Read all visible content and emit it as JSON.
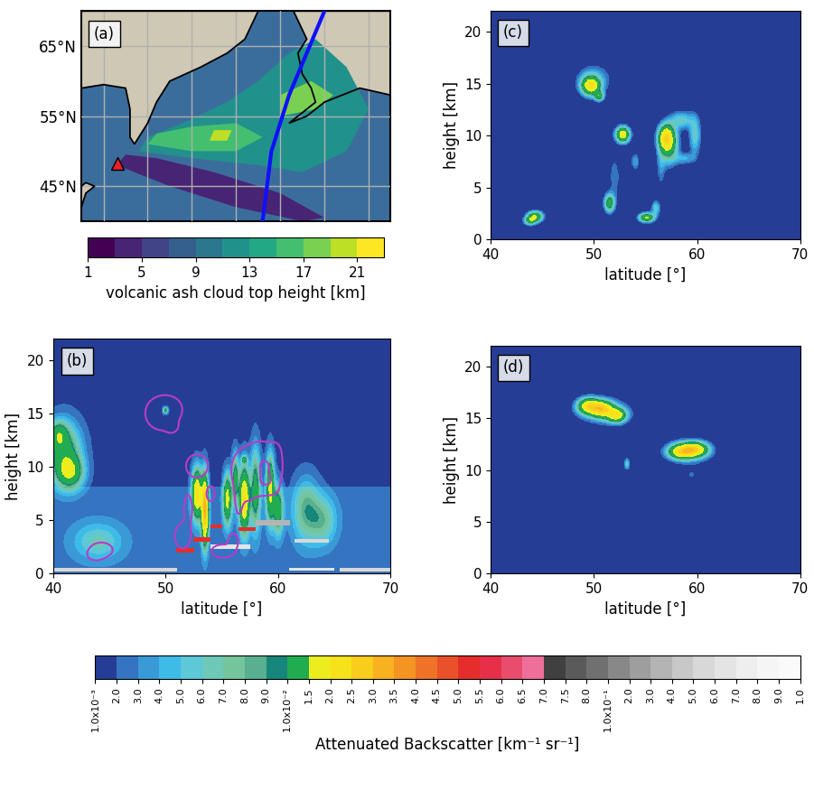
{
  "backscatter_colorbar": {
    "label": "Attenuated Backscatter [km⁻¹ sr⁻¹]",
    "ticks": [
      {
        "value": 0.001,
        "label": "1.0x10⁻³"
      },
      {
        "value": 0.002,
        "label": "2.0"
      },
      {
        "value": 0.003,
        "label": "3.0"
      },
      {
        "value": 0.004,
        "label": "4.0"
      },
      {
        "value": 0.005,
        "label": "5.0"
      },
      {
        "value": 0.006,
        "label": "6.0"
      },
      {
        "value": 0.007,
        "label": "7.0"
      },
      {
        "value": 0.008,
        "label": "8.0"
      },
      {
        "value": 0.009,
        "label": "9.0"
      },
      {
        "value": 0.01,
        "label": "1.0x10⁻²"
      },
      {
        "value": 0.015,
        "label": "1.5"
      },
      {
        "value": 0.02,
        "label": "2.0"
      },
      {
        "value": 0.025,
        "label": "2.5"
      },
      {
        "value": 0.03,
        "label": "3.0"
      },
      {
        "value": 0.035,
        "label": "3.5"
      },
      {
        "value": 0.04,
        "label": "4.0"
      },
      {
        "value": 0.045,
        "label": "4.5"
      },
      {
        "value": 0.05,
        "label": "5.0"
      },
      {
        "value": 0.055,
        "label": "5.5"
      },
      {
        "value": 0.06,
        "label": "6.0"
      },
      {
        "value": 0.065,
        "label": "6.5"
      },
      {
        "value": 0.07,
        "label": "7.0"
      },
      {
        "value": 0.075,
        "label": "7.5"
      },
      {
        "value": 0.08,
        "label": "8.0"
      },
      {
        "value": 0.1,
        "label": "1.0x10⁻¹"
      },
      {
        "value": 0.2,
        "label": "2.0"
      },
      {
        "value": 0.3,
        "label": "3.0"
      },
      {
        "value": 0.4,
        "label": "4.0"
      },
      {
        "value": 0.5,
        "label": "5.0"
      },
      {
        "value": 0.6,
        "label": "6.0"
      },
      {
        "value": 0.7,
        "label": "7.0"
      },
      {
        "value": 0.8,
        "label": "8.0"
      },
      {
        "value": 0.9,
        "label": "9.0"
      },
      {
        "value": 1.0,
        "label": "1.0"
      }
    ],
    "colors": [
      "#263d96",
      "#3474c0",
      "#3a9ad8",
      "#3fbbe8",
      "#5cc8d8",
      "#6ec8b8",
      "#74c49c",
      "#58b090",
      "#16877a",
      "#22ac52",
      "#eded1e",
      "#f5e21b",
      "#f8cd1c",
      "#f8b21f",
      "#f39423",
      "#ee7326",
      "#e9512a",
      "#e52e2c",
      "#e6304a",
      "#e84d6e",
      "#ee6f9a",
      "#404040",
      "#5a5a5a",
      "#707070",
      "#888888",
      "#9e9e9e",
      "#b4b4b4",
      "#c8c8c8",
      "#d8d8d8",
      "#e4e4e4",
      "#eeeeee",
      "#f5f5f5",
      "#fafafa"
    ]
  },
  "chart_data": [
    {
      "type": "map",
      "label": "(a)",
      "xlim": [
        145,
        215
      ],
      "ylim": [
        40,
        70
      ],
      "xticks": [
        150,
        160,
        170,
        180,
        190,
        200,
        210
      ],
      "yticks": [
        {
          "value": 45,
          "label": "45°N"
        },
        {
          "value": 55,
          "label": "55°N"
        },
        {
          "value": 65,
          "label": "65°N"
        }
      ],
      "tick_labels": "y",
      "grid": true,
      "land": [
        {
          "lon": [
            145,
            185,
            182,
            178,
            172,
            165,
            162,
            160,
            157,
            156,
            156,
            155,
            150,
            145
          ],
          "lat": [
            70,
            70,
            66,
            64,
            62,
            60,
            57,
            54,
            51,
            52,
            56,
            59,
            59.5,
            59
          ]
        },
        {
          "lon": [
            193,
            215,
            215,
            208,
            200,
            196,
            192,
            198,
            197,
            195,
            194,
            196
          ],
          "lat": [
            70,
            70,
            58,
            59,
            57,
            55,
            54,
            57,
            59,
            61,
            64,
            66
          ]
        },
        {
          "lon": [
            145,
            146,
            148,
            146,
            145
          ],
          "lat": [
            42,
            44,
            45,
            45.5,
            45
          ]
        }
      ],
      "ash_cloud": [
        {
          "top_height": 3,
          "lon": [
            153,
            165,
            180,
            195,
            200,
            190,
            175,
            162,
            155
          ],
          "lat": [
            48,
            45,
            42,
            40,
            40.5,
            44,
            47,
            49,
            49.5
          ]
        },
        {
          "top_height": 11,
          "lon": [
            158,
            170,
            185,
            195,
            205,
            210,
            205,
            198,
            192,
            185,
            178,
            168,
            160
          ],
          "lat": [
            50,
            49,
            48,
            47,
            50,
            56,
            62,
            66,
            64,
            60,
            57,
            54,
            52
          ]
        },
        {
          "top_height": 15,
          "lon": [
            160,
            170,
            180,
            186,
            180,
            170,
            162
          ],
          "lat": [
            51,
            50,
            50,
            52,
            54,
            53.5,
            52.5
          ]
        },
        {
          "top_height": 17,
          "lon": [
            190,
            198,
            202,
            197,
            190
          ],
          "lat": [
            55,
            56,
            58,
            60,
            58
          ]
        },
        {
          "top_height": 19,
          "lon": [
            174,
            178,
            179,
            175
          ],
          "lat": [
            51.5,
            51.5,
            53,
            53
          ]
        }
      ],
      "volcano": {
        "lon": 153.2,
        "lat": 48.3,
        "color": "#e8202a",
        "marker": "triangle"
      },
      "track": {
        "lon": [
          186,
          188,
          192,
          196,
          200
        ],
        "lat": [
          40,
          50,
          58,
          64,
          70
        ],
        "color": "#1010ff"
      },
      "colorbar": {
        "label": "volcanic ash cloud top height [km]",
        "range": [
          1,
          23
        ],
        "bounds": [
          1,
          3,
          5,
          7,
          9,
          11,
          13,
          15,
          17,
          19,
          21,
          23
        ],
        "ticks": [
          1,
          5,
          9,
          13,
          17,
          21
        ]
      }
    },
    {
      "type": "lidar_curtain",
      "label": "(b)",
      "xlabel": "latitude [°]",
      "ylabel": "height [km]",
      "xlim": [
        40,
        70
      ],
      "ylim": [
        0,
        22
      ],
      "xticks": [
        40,
        50,
        60,
        70
      ],
      "yticks": [
        0,
        5,
        10,
        15,
        20
      ],
      "background": [
        {
          "height": [
            0,
            8.2
          ],
          "value": 0.0025
        },
        {
          "height": [
            8.2,
            22
          ],
          "value": 0.0015
        }
      ],
      "features": [
        {
          "lat": 41,
          "height": 11.5,
          "lat_width": 1.0,
          "height_width": 1.8,
          "peak": 0.01
        },
        {
          "lat": 41.5,
          "height": 9.5,
          "lat_width": 0.8,
          "height_width": 1.0,
          "peak": 0.012
        },
        {
          "lat": 40.5,
          "height": 13,
          "lat_width": 0.5,
          "height_width": 0.8,
          "peak": 0.008
        },
        {
          "lat": 52.8,
          "height": 7.5,
          "lat_width": 0.3,
          "height_width": 1.5,
          "peak": 0.02
        },
        {
          "lat": 53.5,
          "height": 6,
          "lat_width": 0.2,
          "height_width": 2,
          "peak": 0.03
        },
        {
          "lat": 55.5,
          "height": 7,
          "lat_width": 0.25,
          "height_width": 1.5,
          "peak": 0.015
        },
        {
          "lat": 56.2,
          "height": 9,
          "lat_width": 0.2,
          "height_width": 1.5,
          "peak": 0.01
        },
        {
          "lat": 57,
          "height": 7,
          "lat_width": 0.3,
          "height_width": 2,
          "peak": 0.02
        },
        {
          "lat": 58,
          "height": 8,
          "lat_width": 0.3,
          "height_width": 2.5,
          "peak": 0.01
        },
        {
          "lat": 59.3,
          "height": 8,
          "lat_width": 0.25,
          "height_width": 2,
          "peak": 0.015
        },
        {
          "lat": 60,
          "height": 6,
          "lat_width": 0.3,
          "height_width": 1.5,
          "peak": 0.01
        },
        {
          "lat": 62.5,
          "height": 6,
          "lat_width": 0.8,
          "height_width": 2,
          "peak": 0.006
        },
        {
          "lat": 64,
          "height": 5,
          "lat_width": 0.8,
          "height_width": 1.5,
          "peak": 0.005
        },
        {
          "lat": 50,
          "height": 15.3,
          "lat_width": 0.15,
          "height_width": 0.2,
          "peak": 0.01
        },
        {
          "lat": 57,
          "height": 10.7,
          "lat_width": 0.15,
          "height_width": 0.2,
          "peak": 0.01
        },
        {
          "lat": 44,
          "height": 3,
          "lat_width": 1.5,
          "height_width": 1.2,
          "peak": 0.004
        }
      ],
      "layers": [
        {
          "lat": [
            40,
            51
          ],
          "height": [
            0.2,
            0.5
          ],
          "value": 0.5
        },
        {
          "lat": [
            51,
            52.5
          ],
          "height": [
            2.0,
            2.4
          ],
          "value": 0.05
        },
        {
          "lat": [
            52.5,
            54
          ],
          "height": [
            3.0,
            3.4
          ],
          "value": 0.05
        },
        {
          "lat": [
            54,
            55
          ],
          "height": [
            4.3,
            4.6
          ],
          "value": 0.05
        },
        {
          "lat": [
            54,
            57.5
          ],
          "height": [
            2.3,
            2.7
          ],
          "value": 0.6
        },
        {
          "lat": [
            56.5,
            58
          ],
          "height": [
            4.0,
            4.3
          ],
          "value": 0.05
        },
        {
          "lat": [
            58,
            61
          ],
          "height": [
            4.5,
            5.0
          ],
          "value": 0.3
        },
        {
          "lat": [
            61.5,
            64.5
          ],
          "height": [
            2.9,
            3.3
          ],
          "value": 0.5
        },
        {
          "lat": [
            61,
            65
          ],
          "height": [
            0.3,
            0.5
          ],
          "value": 0.6
        },
        {
          "lat": [
            65.5,
            70
          ],
          "height": [
            0.2,
            0.5
          ],
          "value": 0.5
        }
      ],
      "contour_of": "(c)",
      "contour_level": 0.002,
      "contour_color": "#b83cc8"
    },
    {
      "type": "model_curtain",
      "label": "(c)",
      "xlabel": "latitude [°]",
      "ylabel": "height [km]",
      "xlim": [
        40,
        70
      ],
      "ylim": [
        0,
        22
      ],
      "xticks": [
        40,
        50,
        60,
        70
      ],
      "yticks": [
        0,
        5,
        10,
        15,
        20
      ],
      "features": [
        {
          "lat": 44.3,
          "height": 2.2,
          "lat_width": 0.5,
          "height_width": 0.35,
          "peak": 0.015
        },
        {
          "lat": 43.8,
          "height": 1.8,
          "lat_width": 0.4,
          "height_width": 0.3,
          "peak": 0.01
        },
        {
          "lat": 49.7,
          "height": 14.8,
          "lat_width": 0.6,
          "height_width": 0.6,
          "peak": 0.02
        },
        {
          "lat": 50.5,
          "height": 13.8,
          "lat_width": 0.3,
          "height_width": 0.3,
          "peak": 0.012
        },
        {
          "lat": 50.0,
          "height": 15.5,
          "lat_width": 1.2,
          "height_width": 1.0,
          "peak": 0.004
        },
        {
          "lat": 52.8,
          "height": 10.1,
          "lat_width": 0.45,
          "height_width": 0.5,
          "peak": 0.02
        },
        {
          "lat": 51.5,
          "height": 3.5,
          "lat_width": 0.35,
          "height_width": 0.6,
          "peak": 0.012
        },
        {
          "lat": 52.0,
          "height": 6.0,
          "lat_width": 0.4,
          "height_width": 1.5,
          "peak": 0.003
        },
        {
          "lat": 55.1,
          "height": 2.1,
          "lat_width": 0.5,
          "height_width": 0.3,
          "peak": 0.016
        },
        {
          "lat": 56.0,
          "height": 3.0,
          "lat_width": 0.3,
          "height_width": 0.5,
          "peak": 0.006
        },
        {
          "lat": 56.5,
          "height": 7.0,
          "lat_width": 0.3,
          "height_width": 1.5,
          "peak": 0.003
        },
        {
          "lat": 57.0,
          "height": 9.8,
          "lat_width": 0.5,
          "height_width": 0.8,
          "peak": 0.02
        },
        {
          "lat": 57.3,
          "height": 9.0,
          "lat_width": 0.6,
          "height_width": 1.2,
          "peak": 0.01
        },
        {
          "lat": 58.5,
          "height": 11.5,
          "lat_width": 0.8,
          "height_width": 0.6,
          "peak": 0.006
        },
        {
          "lat": 59.8,
          "height": 10.0,
          "lat_width": 0.4,
          "height_width": 1.3,
          "peak": 0.006
        },
        {
          "lat": 58.8,
          "height": 7.8,
          "lat_width": 0.7,
          "height_width": 0.4,
          "peak": 0.004
        },
        {
          "lat": 54.0,
          "height": 7.5,
          "lat_width": 0.3,
          "height_width": 0.6,
          "peak": 0.004
        }
      ]
    },
    {
      "type": "model_curtain",
      "label": "(d)",
      "xlabel": "latitude [°]",
      "ylabel": "height [km]",
      "xlim": [
        40,
        70
      ],
      "ylim": [
        0,
        22
      ],
      "xticks": [
        40,
        50,
        60,
        70
      ],
      "yticks": [
        0,
        5,
        10,
        15,
        20
      ],
      "features": [
        {
          "lat": 49.5,
          "height": 16.2,
          "lat_width": 0.7,
          "height_width": 0.5,
          "peak": 0.02
        },
        {
          "lat": 50.8,
          "height": 15.9,
          "lat_width": 0.7,
          "height_width": 0.5,
          "peak": 0.022
        },
        {
          "lat": 52.2,
          "height": 15.3,
          "lat_width": 0.6,
          "height_width": 0.45,
          "peak": 0.018
        },
        {
          "lat": 51.0,
          "height": 15.7,
          "lat_width": 1.8,
          "height_width": 0.9,
          "peak": 0.005
        },
        {
          "lat": 53.2,
          "height": 10.6,
          "lat_width": 0.2,
          "height_width": 0.4,
          "peak": 0.006
        },
        {
          "lat": 58.5,
          "height": 11.8,
          "lat_width": 0.8,
          "height_width": 0.45,
          "peak": 0.02
        },
        {
          "lat": 59.8,
          "height": 12.0,
          "lat_width": 0.8,
          "height_width": 0.45,
          "peak": 0.02
        },
        {
          "lat": 59.2,
          "height": 11.8,
          "lat_width": 1.6,
          "height_width": 0.8,
          "peak": 0.005
        },
        {
          "lat": 59.5,
          "height": 9.5,
          "lat_width": 0.8,
          "height_width": 0.6,
          "peak": 0.002
        }
      ]
    }
  ]
}
